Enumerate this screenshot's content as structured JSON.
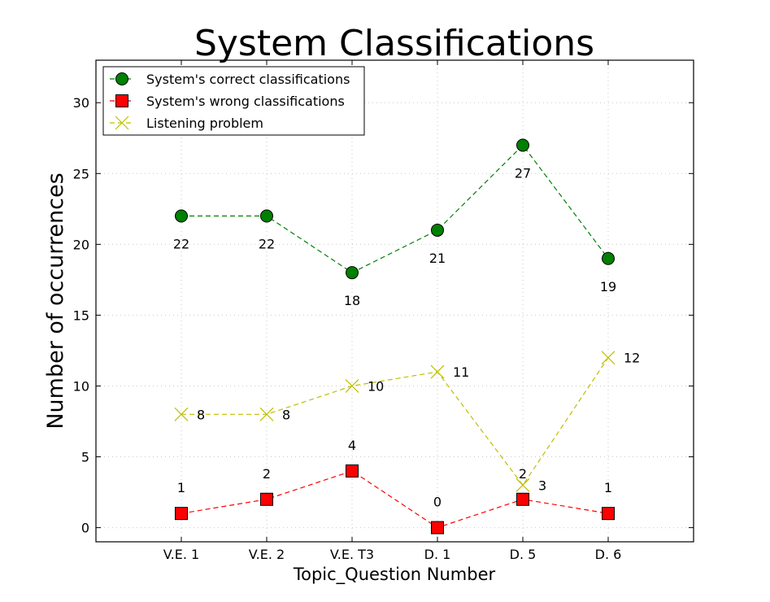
{
  "chart_data": {
    "type": "line",
    "title": "System Classifications",
    "xlabel": "Topic_Question Number",
    "ylabel": "Number of occurrences",
    "categories": [
      "V.E. 1",
      "V.E. 2",
      "V.E. T3",
      "D. 1",
      "D. 5",
      "D. 6"
    ],
    "ylim": [
      -1,
      33
    ],
    "yticks": [
      0,
      5,
      10,
      15,
      20,
      25,
      30
    ],
    "grid": true,
    "legend_position": "top-left",
    "series": [
      {
        "name": "System's correct classifications",
        "values": [
          22,
          22,
          18,
          21,
          27,
          19
        ],
        "color": "#008000",
        "marker": "circle",
        "label_position": "below"
      },
      {
        "name": "System's wrong classifications",
        "values": [
          1,
          2,
          4,
          0,
          2,
          1
        ],
        "color": "#ff0000",
        "marker": "square",
        "label_position": "above"
      },
      {
        "name": "Listening problem",
        "values": [
          8,
          8,
          10,
          11,
          3,
          12
        ],
        "color": "#bfbf00",
        "marker": "x",
        "label_position": "right"
      }
    ]
  }
}
